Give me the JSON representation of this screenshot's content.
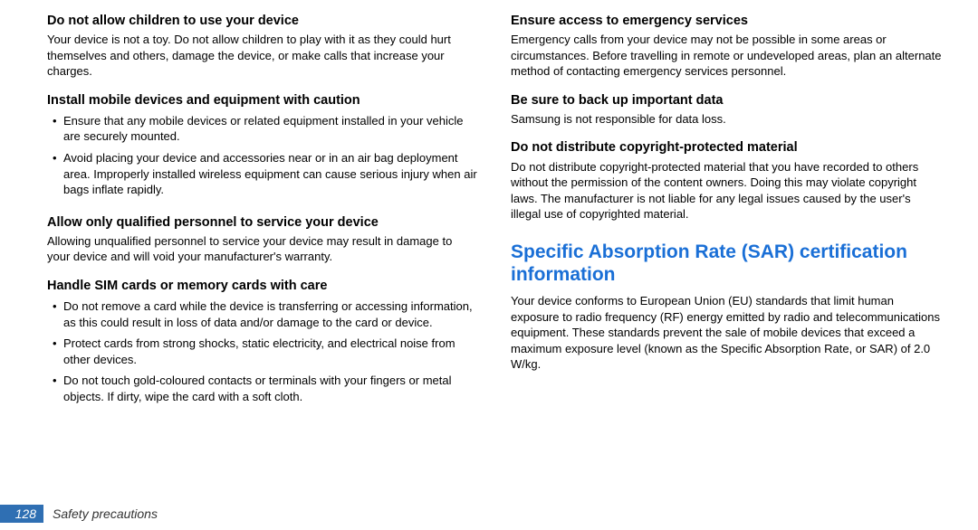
{
  "left": {
    "s1": {
      "heading": "Do not allow children to use your device",
      "text": "Your device is not a toy. Do not allow children to play with it as they could hurt themselves and others, damage the device, or make calls that increase your charges."
    },
    "s2": {
      "heading": "Install mobile devices and equipment with caution",
      "bullets": [
        "Ensure that any mobile devices or related equipment installed in your vehicle are securely mounted.",
        "Avoid placing your device and accessories near or in an air bag deployment area. Improperly installed wireless equipment can cause serious injury when air bags inflate rapidly."
      ]
    },
    "s3": {
      "heading": "Allow only qualified personnel to service your device",
      "text": "Allowing unqualified personnel to service your device may result in damage to your device and will void your manufacturer's warranty."
    },
    "s4": {
      "heading": "Handle SIM cards or memory cards with care",
      "bullets": [
        "Do not remove a card while the device is transferring or accessing information, as this could result in loss of data and/or damage to the card or device.",
        "Protect cards from strong shocks, static electricity, and electrical noise from other devices.",
        "Do not touch gold-coloured contacts or terminals with your fingers or metal objects. If dirty, wipe the card with a soft cloth."
      ]
    }
  },
  "right": {
    "s1": {
      "heading": "Ensure access to emergency services",
      "text": "Emergency calls from your device may not be possible in some areas or circumstances. Before travelling in remote or undeveloped areas, plan an alternate method of contacting emergency services personnel."
    },
    "s2": {
      "heading": "Be sure to back up important data",
      "text": "Samsung is not responsible for data loss."
    },
    "s3": {
      "heading": "Do not distribute copyright-protected material",
      "text": "Do not distribute copyright-protected material that you have recorded to others without the permission of the content owners. Doing this may violate copyright laws. The manufacturer is not liable for any legal issues caused by the user's illegal use of copyrighted material."
    },
    "major": {
      "heading": "Specific Absorption Rate (SAR) certification information",
      "text": "Your device conforms to European Union (EU) standards that limit human exposure to radio frequency (RF) energy emitted by radio and telecommunications equipment. These standards prevent the sale of mobile devices that exceed a maximum exposure level (known as the Specific Absorption Rate, or SAR) of 2.0 W/kg."
    }
  },
  "footer": {
    "page_number": "128",
    "section": "Safety precautions"
  },
  "colors": {
    "accent_blue": "#1a6fd6",
    "footer_blue": "#2f6fb3",
    "text": "#000000",
    "background": "#ffffff"
  },
  "typography": {
    "heading_weight": 700,
    "heading_size_pt": 11,
    "body_size_pt": 10,
    "major_heading_size_pt": 16,
    "font_family": "sans-serif"
  }
}
